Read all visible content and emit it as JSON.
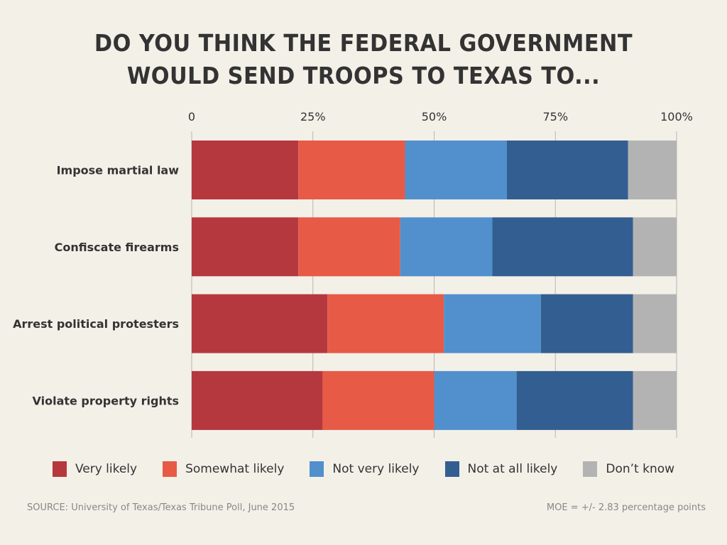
{
  "chart_data": {
    "type": "bar",
    "orientation": "horizontal",
    "stacked": true,
    "title": "DO YOU THINK THE FEDERAL GOVERNMENT WOULD SEND TROOPS TO TEXAS TO...",
    "title_lines": [
      "DO YOU THINK THE FEDERAL GOVERNMENT",
      "WOULD SEND TROOPS TO TEXAS TO..."
    ],
    "categories": [
      "Impose martial law",
      "Confiscate firearms",
      "Arrest political protesters",
      "Violate property rights"
    ],
    "series": [
      {
        "name": "Very likely",
        "color": "#b5383e",
        "values": [
          22,
          22,
          28,
          27
        ]
      },
      {
        "name": "Somewhat likely",
        "color": "#e75a46",
        "values": [
          22,
          21,
          24,
          23
        ]
      },
      {
        "name": "Not very likely",
        "color": "#5190cc",
        "values": [
          21,
          19,
          20,
          17
        ]
      },
      {
        "name": "Not at all likely",
        "color": "#335e91",
        "values": [
          25,
          29,
          19,
          24
        ]
      },
      {
        "name": "Don’t know",
        "color": "#b3b3b3",
        "values": [
          10,
          9,
          9,
          9
        ]
      }
    ],
    "xlim": [
      0,
      100
    ],
    "xticks": [
      0,
      25,
      50,
      75,
      100
    ],
    "xtick_labels": [
      "0",
      "25%",
      "50%",
      "75%",
      "100%"
    ],
    "grid": true,
    "legend_position": "bottom",
    "xlabel": "",
    "ylabel": ""
  },
  "footer": {
    "source": "SOURCE: University of Texas/Texas Tribune Poll, June 2015",
    "moe": "MOE = +/- 2.83 percentage points"
  }
}
